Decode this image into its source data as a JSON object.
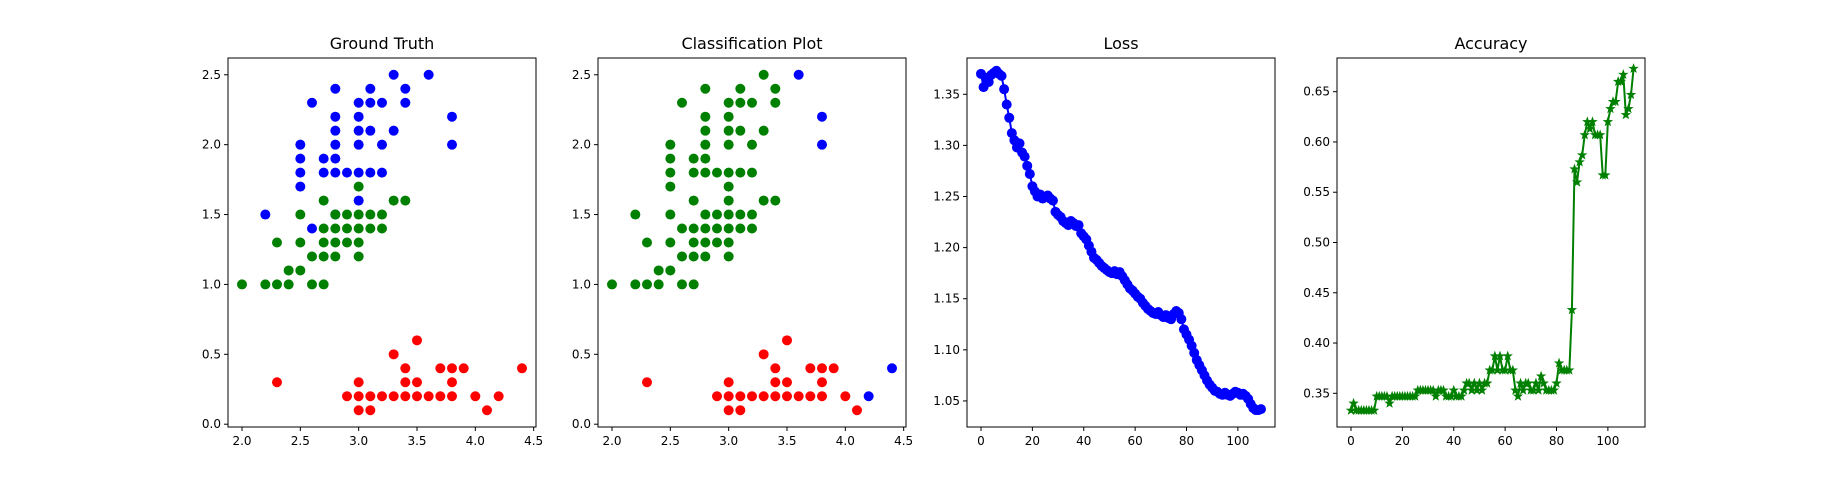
{
  "chart_data": [
    {
      "type": "scatter",
      "title": "Ground Truth",
      "xlim": [
        1.88,
        4.52
      ],
      "ylim": [
        -0.02,
        2.62
      ],
      "xticks": [
        "2.0",
        "2.5",
        "3.0",
        "3.5",
        "4.0",
        "4.5"
      ],
      "yticks": [
        "0.0",
        "0.5",
        "1.0",
        "1.5",
        "2.0",
        "2.5"
      ],
      "grid": false,
      "series": [
        {
          "color": "#0000ff",
          "points": [
            [
              2.2,
              1.5
            ],
            [
              2.5,
              1.7
            ],
            [
              2.5,
              1.8
            ],
            [
              2.5,
              1.9
            ],
            [
              2.5,
              2.0
            ],
            [
              2.6,
              1.4
            ],
            [
              2.6,
              2.3
            ],
            [
              2.7,
              1.8
            ],
            [
              2.7,
              1.9
            ],
            [
              2.8,
              1.5
            ],
            [
              2.8,
              1.8
            ],
            [
              2.8,
              1.9
            ],
            [
              2.8,
              2.0
            ],
            [
              2.8,
              2.1
            ],
            [
              2.8,
              2.2
            ],
            [
              2.8,
              2.4
            ],
            [
              2.9,
              1.8
            ],
            [
              3.0,
              1.6
            ],
            [
              3.0,
              1.8
            ],
            [
              3.0,
              2.0
            ],
            [
              3.0,
              2.1
            ],
            [
              3.0,
              2.2
            ],
            [
              3.0,
              2.3
            ],
            [
              3.1,
              1.8
            ],
            [
              3.1,
              2.1
            ],
            [
              3.1,
              2.3
            ],
            [
              3.1,
              2.4
            ],
            [
              3.2,
              1.8
            ],
            [
              3.2,
              2.0
            ],
            [
              3.2,
              2.3
            ],
            [
              3.3,
              2.1
            ],
            [
              3.3,
              2.5
            ],
            [
              3.4,
              2.3
            ],
            [
              3.4,
              2.4
            ],
            [
              3.6,
              2.5
            ],
            [
              3.8,
              2.0
            ],
            [
              3.8,
              2.2
            ]
          ]
        },
        {
          "color": "#008000",
          "points": [
            [
              2.0,
              1.0
            ],
            [
              2.2,
              1.0
            ],
            [
              2.3,
              1.0
            ],
            [
              2.3,
              1.3
            ],
            [
              2.4,
              1.0
            ],
            [
              2.4,
              1.1
            ],
            [
              2.5,
              1.1
            ],
            [
              2.5,
              1.3
            ],
            [
              2.5,
              1.5
            ],
            [
              2.6,
              1.0
            ],
            [
              2.6,
              1.2
            ],
            [
              2.7,
              1.0
            ],
            [
              2.7,
              1.2
            ],
            [
              2.7,
              1.3
            ],
            [
              2.7,
              1.4
            ],
            [
              2.7,
              1.6
            ],
            [
              2.8,
              1.2
            ],
            [
              2.8,
              1.3
            ],
            [
              2.8,
              1.4
            ],
            [
              2.8,
              1.5
            ],
            [
              2.9,
              1.3
            ],
            [
              2.9,
              1.4
            ],
            [
              2.9,
              1.5
            ],
            [
              3.0,
              1.2
            ],
            [
              3.0,
              1.3
            ],
            [
              3.0,
              1.4
            ],
            [
              3.0,
              1.5
            ],
            [
              3.0,
              1.7
            ],
            [
              3.1,
              1.4
            ],
            [
              3.1,
              1.5
            ],
            [
              3.2,
              1.4
            ],
            [
              3.2,
              1.5
            ],
            [
              3.3,
              1.6
            ],
            [
              3.4,
              1.6
            ]
          ]
        },
        {
          "color": "#ff0000",
          "points": [
            [
              2.3,
              0.3
            ],
            [
              2.9,
              0.2
            ],
            [
              3.0,
              0.1
            ],
            [
              3.0,
              0.2
            ],
            [
              3.0,
              0.3
            ],
            [
              3.1,
              0.1
            ],
            [
              3.1,
              0.2
            ],
            [
              3.2,
              0.2
            ],
            [
              3.3,
              0.2
            ],
            [
              3.3,
              0.5
            ],
            [
              3.4,
              0.2
            ],
            [
              3.4,
              0.3
            ],
            [
              3.4,
              0.4
            ],
            [
              3.5,
              0.2
            ],
            [
              3.5,
              0.3
            ],
            [
              3.5,
              0.6
            ],
            [
              3.6,
              0.2
            ],
            [
              3.7,
              0.2
            ],
            [
              3.7,
              0.4
            ],
            [
              3.8,
              0.2
            ],
            [
              3.8,
              0.3
            ],
            [
              3.8,
              0.4
            ],
            [
              3.9,
              0.4
            ],
            [
              4.0,
              0.2
            ],
            [
              4.1,
              0.1
            ],
            [
              4.2,
              0.2
            ],
            [
              4.4,
              0.4
            ]
          ]
        }
      ]
    },
    {
      "type": "scatter",
      "title": "Classification Plot",
      "xlim": [
        1.88,
        4.52
      ],
      "ylim": [
        -0.02,
        2.62
      ],
      "xticks": [
        "2.0",
        "2.5",
        "3.0",
        "3.5",
        "4.0",
        "4.5"
      ],
      "yticks": [
        "0.0",
        "0.5",
        "1.0",
        "1.5",
        "2.0",
        "2.5"
      ],
      "grid": false,
      "series": [
        {
          "color": "#008000",
          "points": [
            [
              2.0,
              1.0
            ],
            [
              2.2,
              1.0
            ],
            [
              2.2,
              1.5
            ],
            [
              2.3,
              1.0
            ],
            [
              2.3,
              1.3
            ],
            [
              2.4,
              1.0
            ],
            [
              2.4,
              1.1
            ],
            [
              2.5,
              1.1
            ],
            [
              2.5,
              1.3
            ],
            [
              2.5,
              1.5
            ],
            [
              2.5,
              1.7
            ],
            [
              2.5,
              1.8
            ],
            [
              2.5,
              1.9
            ],
            [
              2.5,
              2.0
            ],
            [
              2.6,
              1.0
            ],
            [
              2.6,
              1.2
            ],
            [
              2.6,
              1.4
            ],
            [
              2.6,
              2.3
            ],
            [
              2.7,
              1.0
            ],
            [
              2.7,
              1.2
            ],
            [
              2.7,
              1.3
            ],
            [
              2.7,
              1.4
            ],
            [
              2.7,
              1.6
            ],
            [
              2.7,
              1.8
            ],
            [
              2.7,
              1.9
            ],
            [
              2.8,
              1.2
            ],
            [
              2.8,
              1.3
            ],
            [
              2.8,
              1.4
            ],
            [
              2.8,
              1.5
            ],
            [
              2.8,
              1.8
            ],
            [
              2.8,
              1.9
            ],
            [
              2.8,
              2.0
            ],
            [
              2.8,
              2.1
            ],
            [
              2.8,
              2.2
            ],
            [
              2.8,
              2.4
            ],
            [
              2.9,
              1.3
            ],
            [
              2.9,
              1.4
            ],
            [
              2.9,
              1.5
            ],
            [
              2.9,
              1.8
            ],
            [
              3.0,
              1.2
            ],
            [
              3.0,
              1.3
            ],
            [
              3.0,
              1.4
            ],
            [
              3.0,
              1.5
            ],
            [
              3.0,
              1.6
            ],
            [
              3.0,
              1.7
            ],
            [
              3.0,
              1.8
            ],
            [
              3.0,
              2.0
            ],
            [
              3.0,
              2.1
            ],
            [
              3.0,
              2.2
            ],
            [
              3.0,
              2.3
            ],
            [
              3.1,
              1.4
            ],
            [
              3.1,
              1.5
            ],
            [
              3.1,
              1.8
            ],
            [
              3.1,
              2.1
            ],
            [
              3.1,
              2.3
            ],
            [
              3.1,
              2.4
            ],
            [
              3.2,
              1.4
            ],
            [
              3.2,
              1.5
            ],
            [
              3.2,
              1.8
            ],
            [
              3.2,
              2.0
            ],
            [
              3.2,
              2.3
            ],
            [
              3.3,
              1.6
            ],
            [
              3.3,
              2.1
            ],
            [
              3.3,
              2.5
            ],
            [
              3.4,
              1.6
            ],
            [
              3.4,
              2.3
            ],
            [
              3.4,
              2.4
            ]
          ]
        },
        {
          "color": "#0000ff",
          "points": [
            [
              3.6,
              2.5
            ],
            [
              3.8,
              2.0
            ],
            [
              3.8,
              2.2
            ],
            [
              4.2,
              0.2
            ],
            [
              4.4,
              0.4
            ]
          ]
        },
        {
          "color": "#ff0000",
          "points": [
            [
              2.3,
              0.3
            ],
            [
              2.9,
              0.2
            ],
            [
              3.0,
              0.1
            ],
            [
              3.0,
              0.2
            ],
            [
              3.0,
              0.3
            ],
            [
              3.1,
              0.1
            ],
            [
              3.1,
              0.2
            ],
            [
              3.2,
              0.2
            ],
            [
              3.3,
              0.2
            ],
            [
              3.3,
              0.5
            ],
            [
              3.4,
              0.2
            ],
            [
              3.4,
              0.3
            ],
            [
              3.4,
              0.4
            ],
            [
              3.5,
              0.2
            ],
            [
              3.5,
              0.3
            ],
            [
              3.5,
              0.6
            ],
            [
              3.6,
              0.2
            ],
            [
              3.7,
              0.2
            ],
            [
              3.7,
              0.4
            ],
            [
              3.8,
              0.2
            ],
            [
              3.8,
              0.3
            ],
            [
              3.8,
              0.4
            ],
            [
              3.9,
              0.4
            ],
            [
              4.0,
              0.2
            ],
            [
              4.1,
              0.1
            ]
          ]
        }
      ]
    },
    {
      "type": "line",
      "title": "Loss",
      "xlim": [
        -5.45,
        114.45
      ],
      "ylim": [
        1.0245,
        1.3855
      ],
      "xticks": [
        "0",
        "20",
        "40",
        "60",
        "80",
        "100"
      ],
      "yticks": [
        "1.05",
        "1.10",
        "1.15",
        "1.20",
        "1.25",
        "1.30",
        "1.35"
      ],
      "grid": false,
      "series": [
        {
          "color": "#0000ff",
          "marker": "circle",
          "x_start": 0,
          "x_step": 1,
          "values": [
            1.37,
            1.357,
            1.366,
            1.362,
            1.369,
            1.371,
            1.373,
            1.37,
            1.368,
            1.355,
            1.34,
            1.327,
            1.312,
            1.305,
            1.298,
            1.302,
            1.293,
            1.289,
            1.28,
            1.272,
            1.26,
            1.255,
            1.25,
            1.252,
            1.248,
            1.25,
            1.251,
            1.248,
            1.246,
            1.235,
            1.232,
            1.23,
            1.226,
            1.224,
            1.222,
            1.226,
            1.224,
            1.221,
            1.222,
            1.214,
            1.211,
            1.208,
            1.202,
            1.196,
            1.19,
            1.188,
            1.185,
            1.182,
            1.18,
            1.178,
            1.176,
            1.175,
            1.177,
            1.174,
            1.176,
            1.172,
            1.168,
            1.164,
            1.16,
            1.158,
            1.155,
            1.152,
            1.15,
            1.146,
            1.143,
            1.14,
            1.138,
            1.136,
            1.135,
            1.137,
            1.134,
            1.132,
            1.134,
            1.131,
            1.13,
            1.135,
            1.138,
            1.136,
            1.13,
            1.12,
            1.115,
            1.11,
            1.104,
            1.097,
            1.09,
            1.085,
            1.08,
            1.075,
            1.07,
            1.066,
            1.063,
            1.06,
            1.059,
            1.057,
            1.056,
            1.058,
            1.056,
            1.055,
            1.057,
            1.059,
            1.058,
            1.056,
            1.057,
            1.055,
            1.052,
            1.047,
            1.043,
            1.041,
            1.041,
            1.042
          ]
        }
      ]
    },
    {
      "type": "line",
      "title": "Accuracy",
      "xlim": [
        -5.45,
        114.45
      ],
      "ylim": [
        0.3165,
        0.6835
      ],
      "xticks": [
        "0",
        "20",
        "40",
        "60",
        "80",
        "100"
      ],
      "yticks": [
        "0.35",
        "0.40",
        "0.45",
        "0.50",
        "0.55",
        "0.60",
        "0.65"
      ],
      "grid": false,
      "series": [
        {
          "color": "#008000",
          "marker": "star",
          "x_start": 0,
          "x_step": 1,
          "values": [
            0.333,
            0.34,
            0.333,
            0.333,
            0.333,
            0.333,
            0.333,
            0.333,
            0.333,
            0.333,
            0.347,
            0.347,
            0.347,
            0.347,
            0.347,
            0.34,
            0.347,
            0.347,
            0.347,
            0.347,
            0.347,
            0.347,
            0.347,
            0.347,
            0.347,
            0.347,
            0.353,
            0.353,
            0.353,
            0.353,
            0.353,
            0.353,
            0.353,
            0.347,
            0.353,
            0.353,
            0.353,
            0.347,
            0.347,
            0.347,
            0.353,
            0.347,
            0.347,
            0.347,
            0.353,
            0.36,
            0.36,
            0.353,
            0.36,
            0.353,
            0.36,
            0.353,
            0.36,
            0.36,
            0.373,
            0.373,
            0.387,
            0.373,
            0.387,
            0.373,
            0.373,
            0.387,
            0.373,
            0.373,
            0.353,
            0.347,
            0.36,
            0.353,
            0.36,
            0.36,
            0.353,
            0.353,
            0.36,
            0.353,
            0.367,
            0.36,
            0.353,
            0.353,
            0.353,
            0.353,
            0.36,
            0.38,
            0.373,
            0.373,
            0.373,
            0.373,
            0.433,
            0.573,
            0.56,
            0.58,
            0.587,
            0.607,
            0.62,
            0.613,
            0.62,
            0.607,
            0.607,
            0.607,
            0.567,
            0.567,
            0.62,
            0.633,
            0.64,
            0.64,
            0.66,
            0.66,
            0.667,
            0.627,
            0.633,
            0.647,
            0.673
          ]
        }
      ]
    }
  ]
}
